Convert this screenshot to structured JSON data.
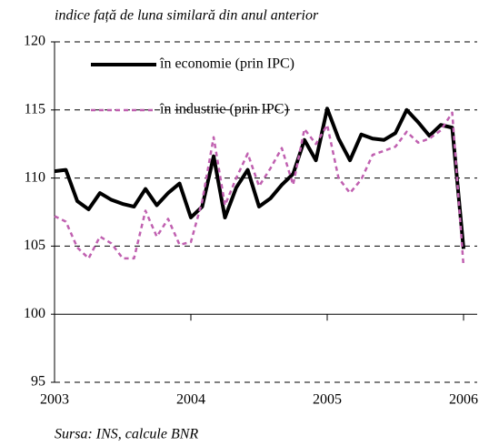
{
  "chart_data": {
    "type": "line",
    "title": "indice față de luna similară din anul anterior",
    "source": "Sursa: INS, calcule BNR",
    "x": [
      2003,
      2003.083,
      2003.167,
      2003.25,
      2003.333,
      2003.417,
      2003.5,
      2003.583,
      2003.667,
      2003.75,
      2003.833,
      2003.917,
      2004,
      2004.083,
      2004.167,
      2004.25,
      2004.333,
      2004.417,
      2004.5,
      2004.583,
      2004.667,
      2004.75,
      2004.833,
      2004.917,
      2005,
      2005.083,
      2005.167,
      2005.25,
      2005.333,
      2005.417,
      2005.5,
      2005.583,
      2005.667,
      2005.75,
      2005.833,
      2005.917,
      2006
    ],
    "series": [
      {
        "name": "în economie (prin IPC)",
        "color": "#000000",
        "dashed": false,
        "values": [
          110.5,
          110.6,
          108.3,
          107.7,
          108.9,
          108.4,
          108.1,
          107.9,
          109.2,
          108.0,
          108.9,
          109.6,
          107.1,
          107.9,
          111.6,
          107.1,
          109.3,
          110.6,
          107.9,
          108.5,
          109.5,
          110.3,
          112.8,
          111.3,
          115.1,
          112.9,
          111.3,
          113.2,
          112.9,
          112.8,
          113.3,
          115.0,
          114.1,
          113.1,
          113.9,
          113.7,
          104.8
        ]
      },
      {
        "name": "în industrie (prin IPC)",
        "color": "#c060b0",
        "dashed": true,
        "values": [
          107.2,
          106.8,
          104.9,
          104.1,
          105.7,
          105.2,
          104.1,
          104.1,
          107.6,
          105.7,
          107.0,
          105.1,
          105.3,
          108.3,
          113.0,
          108.0,
          110.0,
          111.8,
          109.4,
          110.7,
          112.2,
          109.5,
          113.6,
          112.5,
          113.9,
          110.0,
          108.9,
          109.9,
          111.7,
          112.0,
          112.3,
          113.4,
          112.6,
          112.9,
          113.5,
          114.8,
          103.5
        ]
      }
    ],
    "xlim": [
      2003,
      2006.1
    ],
    "xticks": [
      2003,
      2004,
      2005,
      2006
    ],
    "ylim": [
      95,
      120
    ],
    "yticks": [
      95,
      100,
      105,
      110,
      115,
      120
    ],
    "x_axis_at": 100,
    "grid": true
  }
}
